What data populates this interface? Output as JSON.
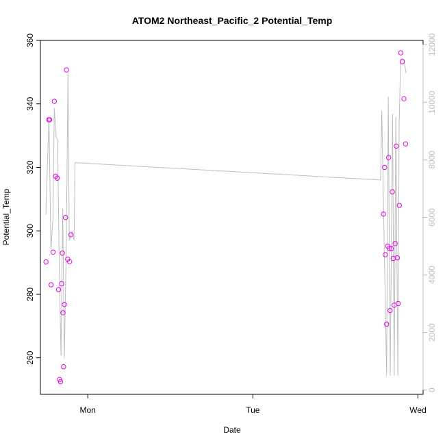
{
  "chart_data": {
    "type": "scatter",
    "title": "ATOM2 Northeast_Pacific_2 Potential_Temp",
    "xlabel": "Date",
    "ylabel": "Potential_Temp",
    "x_ticks": [
      {
        "label": "Mon",
        "value": 1.0
      },
      {
        "label": "Tue",
        "value": 2.0
      },
      {
        "label": "Wed",
        "value": 3.0
      }
    ],
    "xlim": [
      0.713,
      3.031
    ],
    "ylim": [
      248.5,
      360
    ],
    "y_ticks": [
      260,
      280,
      300,
      320,
      340,
      360
    ],
    "y2lim": [
      -150,
      12150
    ],
    "y2_ticks": [
      0,
      2000,
      4000,
      6000,
      8000,
      10000,
      12000
    ],
    "grid": false,
    "colors": {
      "points": "#e600e6",
      "line": "#bdbdbd",
      "axis": "#000000",
      "right_axis": "#bdbdbd"
    },
    "series": [
      {
        "kind": "points",
        "axis": "left",
        "points": [
          [
            0.747,
            290.2
          ],
          [
            0.764,
            335.0
          ],
          [
            0.769,
            335.0
          ],
          [
            0.778,
            283.0
          ],
          [
            0.79,
            293.3
          ],
          [
            0.797,
            340.8
          ],
          [
            0.805,
            317.2
          ],
          [
            0.815,
            316.6
          ],
          [
            0.823,
            281.5
          ],
          [
            0.829,
            253.2
          ],
          [
            0.835,
            252.5
          ],
          [
            0.842,
            283.3
          ],
          [
            0.846,
            293.0
          ],
          [
            0.85,
            274.2
          ],
          [
            0.853,
            257.2
          ],
          [
            0.858,
            276.8
          ],
          [
            0.865,
            304.2
          ],
          [
            0.871,
            350.7
          ],
          [
            0.878,
            291.1
          ],
          [
            0.89,
            290.3
          ],
          [
            0.898,
            298.8
          ],
          [
            2.791,
            305.3
          ],
          [
            2.798,
            320.0
          ],
          [
            2.802,
            292.5
          ],
          [
            2.81,
            270.6
          ],
          [
            2.816,
            295.2
          ],
          [
            2.822,
            323.1
          ],
          [
            2.828,
            294.5
          ],
          [
            2.831,
            274.9
          ],
          [
            2.839,
            294.4
          ],
          [
            2.845,
            312.3
          ],
          [
            2.85,
            291.3
          ],
          [
            2.856,
            276.6
          ],
          [
            2.862,
            296.0
          ],
          [
            2.869,
            326.7
          ],
          [
            2.875,
            291.5
          ],
          [
            2.88,
            277.1
          ],
          [
            2.887,
            308.0
          ],
          [
            2.896,
            356.1
          ],
          [
            2.905,
            353.3
          ],
          [
            2.915,
            341.6
          ],
          [
            2.925,
            327.4
          ]
        ]
      },
      {
        "kind": "line",
        "axis": "right",
        "points": [
          [
            0.746,
            6100
          ],
          [
            0.765,
            9500
          ],
          [
            0.777,
            4900
          ],
          [
            0.789,
            5900
          ],
          [
            0.797,
            9800
          ],
          [
            0.808,
            8800
          ],
          [
            0.817,
            8700
          ],
          [
            0.828,
            4100
          ],
          [
            0.838,
            1200
          ],
          [
            0.848,
            6300
          ],
          [
            0.858,
            1100
          ],
          [
            0.87,
            5200
          ],
          [
            0.88,
            11000
          ],
          [
            0.888,
            5200
          ],
          [
            0.905,
            5500
          ],
          [
            0.917,
            5200
          ],
          [
            0.923,
            7900
          ],
          [
            2.773,
            7300
          ],
          [
            2.781,
            9700
          ],
          [
            2.81,
            500
          ],
          [
            2.82,
            10200
          ],
          [
            2.832,
            500
          ],
          [
            2.846,
            9600
          ],
          [
            2.856,
            500
          ],
          [
            2.866,
            9500
          ],
          [
            2.878,
            500
          ],
          [
            2.886,
            9200
          ],
          [
            2.895,
            11500
          ],
          [
            2.915,
            11500
          ],
          [
            2.928,
            11000
          ]
        ]
      }
    ]
  }
}
